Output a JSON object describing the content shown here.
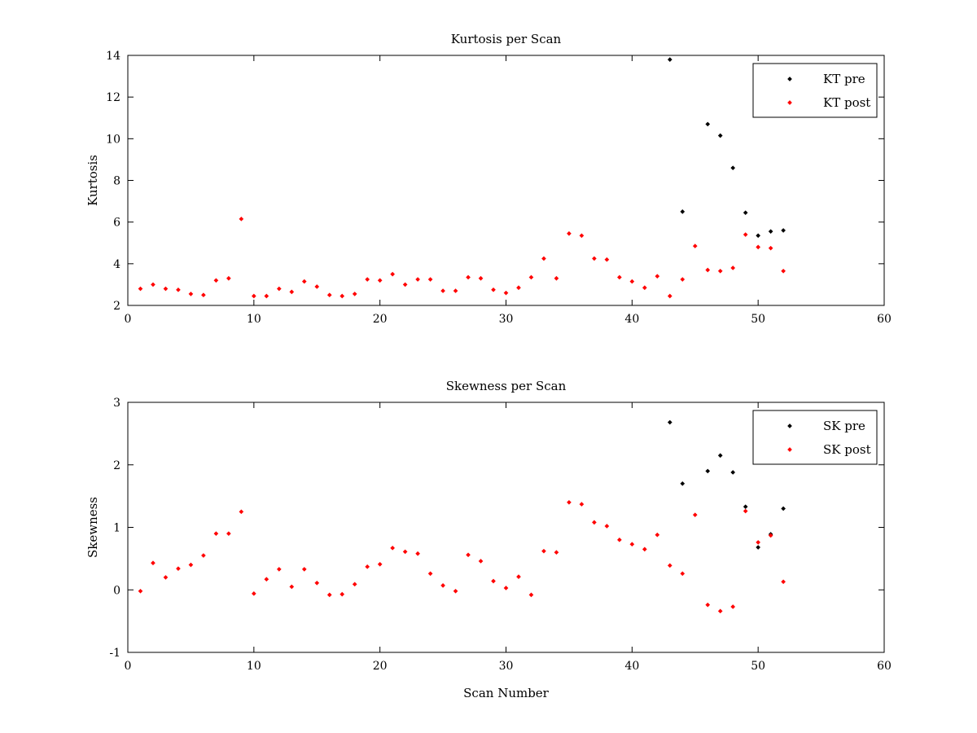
{
  "chart_data": [
    {
      "type": "scatter",
      "title": "Kurtosis per Scan",
      "xlabel": "",
      "ylabel": "Kurtosis",
      "xlim": [
        0,
        60
      ],
      "ylim": [
        2,
        14
      ],
      "xticks": [
        0,
        10,
        20,
        30,
        40,
        50,
        60
      ],
      "yticks": [
        2,
        4,
        6,
        8,
        10,
        12,
        14
      ],
      "legend_position": "top-right",
      "grid": false,
      "series": [
        {
          "name": "KT pre",
          "color": "#000000",
          "points": [
            [
              43,
              13.8
            ],
            [
              44,
              6.5
            ],
            [
              46,
              10.7
            ],
            [
              47,
              10.15
            ],
            [
              48,
              8.6
            ],
            [
              49,
              6.45
            ],
            [
              50,
              5.35
            ],
            [
              51,
              5.55
            ],
            [
              52,
              5.6
            ]
          ]
        },
        {
          "name": "KT post",
          "color": "#ff0000",
          "points": [
            [
              1,
              2.8
            ],
            [
              2,
              3.0
            ],
            [
              3,
              2.8
            ],
            [
              4,
              2.75
            ],
            [
              5,
              2.55
            ],
            [
              6,
              2.5
            ],
            [
              7,
              3.2
            ],
            [
              8,
              3.3
            ],
            [
              9,
              6.15
            ],
            [
              10,
              2.45
            ],
            [
              11,
              2.45
            ],
            [
              12,
              2.8
            ],
            [
              13,
              2.65
            ],
            [
              14,
              3.15
            ],
            [
              15,
              2.9
            ],
            [
              16,
              2.5
            ],
            [
              17,
              2.45
            ],
            [
              18,
              2.55
            ],
            [
              19,
              3.25
            ],
            [
              20,
              3.2
            ],
            [
              21,
              3.5
            ],
            [
              22,
              3.0
            ],
            [
              23,
              3.25
            ],
            [
              24,
              3.25
            ],
            [
              25,
              2.7
            ],
            [
              26,
              2.7
            ],
            [
              27,
              3.35
            ],
            [
              28,
              3.3
            ],
            [
              29,
              2.75
            ],
            [
              30,
              2.6
            ],
            [
              31,
              2.85
            ],
            [
              32,
              3.35
            ],
            [
              33,
              4.25
            ],
            [
              34,
              3.3
            ],
            [
              35,
              5.45
            ],
            [
              36,
              5.35
            ],
            [
              37,
              4.25
            ],
            [
              38,
              4.2
            ],
            [
              39,
              3.35
            ],
            [
              40,
              3.15
            ],
            [
              41,
              2.85
            ],
            [
              42,
              3.4
            ],
            [
              43,
              2.45
            ],
            [
              44,
              3.25
            ],
            [
              45,
              4.85
            ],
            [
              46,
              3.7
            ],
            [
              47,
              3.65
            ],
            [
              48,
              3.8
            ],
            [
              49,
              5.4
            ],
            [
              50,
              4.8
            ],
            [
              51,
              4.75
            ],
            [
              52,
              3.65
            ]
          ]
        }
      ]
    },
    {
      "type": "scatter",
      "title": "Skewness per Scan",
      "xlabel": "Scan Number",
      "ylabel": "Skewness",
      "xlim": [
        0,
        60
      ],
      "ylim": [
        -1,
        3
      ],
      "xticks": [
        0,
        10,
        20,
        30,
        40,
        50,
        60
      ],
      "yticks": [
        -1,
        0,
        1,
        2,
        3
      ],
      "legend_position": "top-right",
      "grid": false,
      "series": [
        {
          "name": "SK pre",
          "color": "#000000",
          "points": [
            [
              43,
              2.68
            ],
            [
              44,
              1.7
            ],
            [
              46,
              1.9
            ],
            [
              47,
              2.15
            ],
            [
              48,
              1.88
            ],
            [
              49,
              1.33
            ],
            [
              50,
              0.68
            ],
            [
              51,
              0.89
            ],
            [
              52,
              1.3
            ]
          ]
        },
        {
          "name": "SK post",
          "color": "#ff0000",
          "points": [
            [
              1,
              -0.02
            ],
            [
              2,
              0.43
            ],
            [
              3,
              0.2
            ],
            [
              4,
              0.34
            ],
            [
              5,
              0.4
            ],
            [
              6,
              0.55
            ],
            [
              7,
              0.9
            ],
            [
              8,
              0.9
            ],
            [
              9,
              1.25
            ],
            [
              10,
              -0.06
            ],
            [
              11,
              0.17
            ],
            [
              12,
              0.33
            ],
            [
              13,
              0.05
            ],
            [
              14,
              0.33
            ],
            [
              15,
              0.11
            ],
            [
              16,
              -0.08
            ],
            [
              17,
              -0.07
            ],
            [
              18,
              0.09
            ],
            [
              19,
              0.37
            ],
            [
              20,
              0.41
            ],
            [
              21,
              0.67
            ],
            [
              22,
              0.61
            ],
            [
              23,
              0.58
            ],
            [
              24,
              0.26
            ],
            [
              25,
              0.07
            ],
            [
              26,
              -0.02
            ],
            [
              27,
              0.56
            ],
            [
              28,
              0.46
            ],
            [
              29,
              0.14
            ],
            [
              30,
              0.03
            ],
            [
              31,
              0.21
            ],
            [
              32,
              -0.08
            ],
            [
              33,
              0.62
            ],
            [
              34,
              0.6
            ],
            [
              35,
              1.4
            ],
            [
              36,
              1.37
            ],
            [
              37,
              1.08
            ],
            [
              38,
              1.02
            ],
            [
              39,
              0.8
            ],
            [
              40,
              0.73
            ],
            [
              41,
              0.65
            ],
            [
              42,
              0.88
            ],
            [
              43,
              0.39
            ],
            [
              44,
              0.26
            ],
            [
              45,
              1.2
            ],
            [
              46,
              -0.24
            ],
            [
              47,
              -0.34
            ],
            [
              48,
              -0.27
            ],
            [
              49,
              1.26
            ],
            [
              50,
              0.76
            ],
            [
              51,
              0.87
            ],
            [
              52,
              0.13
            ]
          ]
        }
      ]
    }
  ]
}
